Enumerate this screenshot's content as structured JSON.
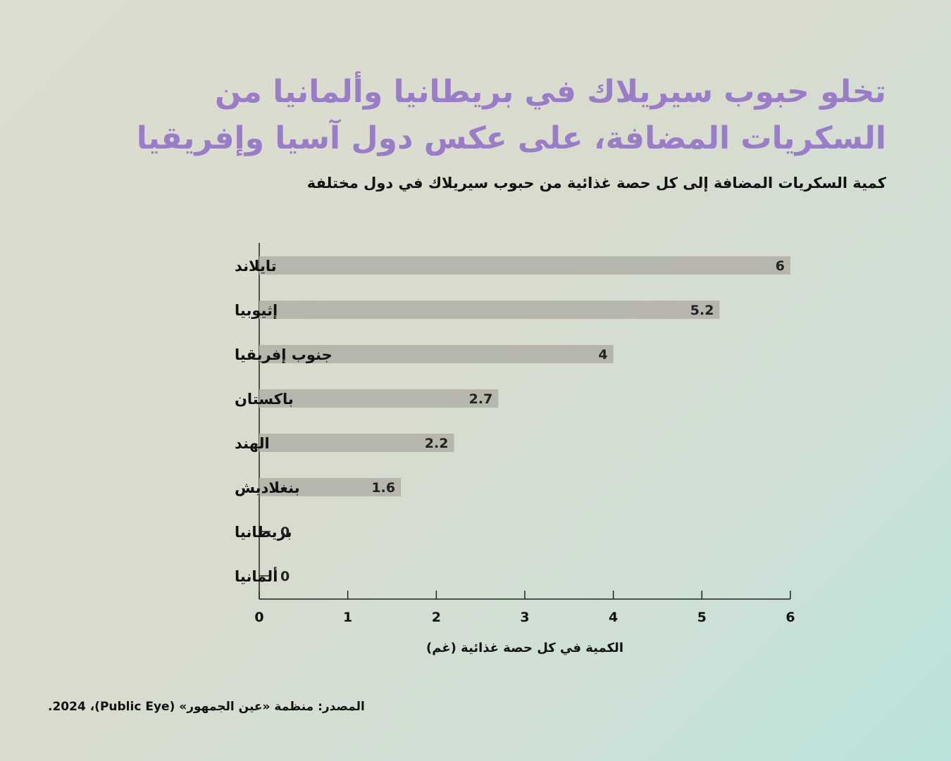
{
  "title_line1": "تخلو حبوب سيريلاك في بريطانيا وألمانيا من",
  "title_line2": "السكريات المضافة، على عكس دول آسيا وإفريقيا",
  "subtitle": "كمية السكريات المضافة إلى كل حصة غذائية من حبوب سيريلاك في دول مختلفة",
  "source": "المصدر: منظمة «عين الجمهور» (Public Eye)، 2024.",
  "colors": {
    "title": "#9a7dc9",
    "bar": "#b7b6ad",
    "axis": "#222222"
  },
  "chart_data": {
    "type": "bar",
    "orientation": "horizontal",
    "categories": [
      "تايلاند",
      "إثيوبيا",
      "جنوب إفريقيا",
      "باكستان",
      "الهند",
      "بنغلاديش",
      "بريطانيا",
      "ألمانيا"
    ],
    "values": [
      6,
      5.2,
      4,
      2.7,
      2.2,
      1.6,
      0,
      0
    ],
    "value_labels": [
      "6",
      "5.2",
      "4",
      "2.7",
      "2.2",
      "1.6",
      "0",
      "0"
    ],
    "xlabel": "الكمية في كل حصة غذائية (غم)",
    "xlim": [
      0,
      6
    ],
    "xticks": [
      "0",
      "1",
      "2",
      "3",
      "4",
      "5",
      "6"
    ],
    "grid": false
  }
}
